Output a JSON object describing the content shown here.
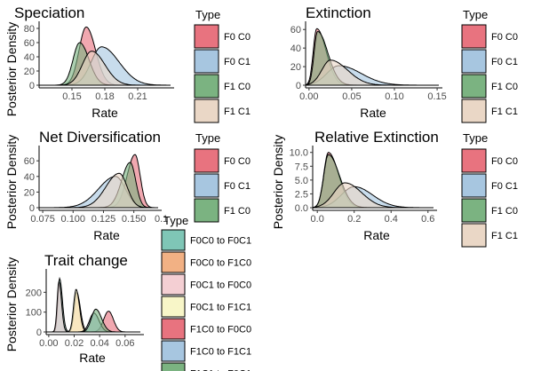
{
  "colors": {
    "F0 C0": "#e8737f",
    "F0 C1": "#a7c6e0",
    "F1 C0": "#7bb381",
    "F1 C1": "#ead7c6",
    "F0C0 to F0C1": "#7fc6b6",
    "F0C0 to F1C0": "#f2b184",
    "F0C1 to F0C0": "#f4cfd3",
    "F0C1 to F1C1": "#f8f6c8",
    "F1C0 to F0C0": "#e8737f",
    "F1C0 to F1C1": "#a7c6e0",
    "F1C1 to F0C1": "#7bb381"
  },
  "chart_data": [
    {
      "id": "speciation",
      "type": "area",
      "title": "Speciation",
      "xlabel": "Rate",
      "ylabel": "Posterior Density",
      "xlim": [
        0.12,
        0.24
      ],
      "ylim": [
        0,
        85
      ],
      "xticks": [
        0.15,
        0.18,
        0.21
      ],
      "xtick_labels": [
        "0.15",
        "0.18",
        "0.21"
      ],
      "yticks": [
        0,
        20,
        40,
        60,
        80
      ],
      "ytick_labels": [
        "0",
        "20",
        "40",
        "60",
        "80"
      ],
      "legend_title": "Type",
      "series": [
        {
          "name": "F0 C0",
          "peak_x": 0.163,
          "peak_y": 82,
          "sd_left": 0.0065,
          "sd_right": 0.0085
        },
        {
          "name": "F0 C1",
          "peak_x": 0.177,
          "peak_y": 54,
          "sd_left": 0.0095,
          "sd_right": 0.016
        },
        {
          "name": "F1 C0",
          "peak_x": 0.157,
          "peak_y": 60,
          "sd_left": 0.006,
          "sd_right": 0.0085
        },
        {
          "name": "F1 C1",
          "peak_x": 0.168,
          "peak_y": 48,
          "sd_left": 0.0085,
          "sd_right": 0.012
        }
      ]
    },
    {
      "id": "extinction",
      "type": "area",
      "title": "Extinction",
      "xlabel": "Rate",
      "ylabel": "",
      "xlim": [
        -0.004,
        0.152
      ],
      "ylim": [
        0,
        65
      ],
      "xticks": [
        0,
        0.05,
        0.1,
        0.15
      ],
      "xtick_labels": [
        "0.00",
        "0.05",
        "0.10",
        "0.15"
      ],
      "yticks": [
        0,
        20,
        40,
        60
      ],
      "ytick_labels": [
        "0",
        "20",
        "40",
        "60"
      ],
      "legend_title": "Type",
      "series": [
        {
          "name": "F0 C0",
          "peak_x": 0.009,
          "peak_y": 61,
          "sd_left": 0.004,
          "sd_right": 0.011
        },
        {
          "name": "F0 C1",
          "peak_x": 0.035,
          "peak_y": 21,
          "sd_left": 0.014,
          "sd_right": 0.026
        },
        {
          "name": "F1 C0",
          "peak_x": 0.01,
          "peak_y": 58,
          "sd_left": 0.004,
          "sd_right": 0.012
        },
        {
          "name": "F1 C1",
          "peak_x": 0.025,
          "peak_y": 27,
          "sd_left": 0.01,
          "sd_right": 0.02
        }
      ]
    },
    {
      "id": "net-diversification",
      "type": "area",
      "title": "Net Diversification",
      "xlabel": "Rate",
      "ylabel": "Posterior Density",
      "xlim": [
        0.072,
        0.17
      ],
      "ylim": [
        0,
        75
      ],
      "xticks": [
        0.075,
        0.1,
        0.125,
        0.15
      ],
      "xtick_labels": [
        "0.075",
        "0.100",
        "0.125",
        "0.150"
      ],
      "xtick_extra": "0.1",
      "yticks": [
        0,
        20,
        40,
        60
      ],
      "ytick_labels": [
        "0",
        "20",
        "40",
        "60"
      ],
      "legend_title": "Type",
      "series": [
        {
          "name": "F0 C0",
          "peak_x": 0.151,
          "peak_y": 68,
          "sd_left": 0.0065,
          "sd_right": 0.0042
        },
        {
          "name": "F0 C1",
          "peak_x": 0.135,
          "peak_y": 40,
          "sd_left": 0.014,
          "sd_right": 0.008
        },
        {
          "name": "F1 C0",
          "peak_x": 0.147,
          "peak_y": 58,
          "sd_left": 0.007,
          "sd_right": 0.0045
        },
        {
          "name": "F1 C1",
          "peak_x": 0.138,
          "peak_y": 44,
          "sd_left": 0.011,
          "sd_right": 0.0065
        }
      ]
    },
    {
      "id": "relative-extinction",
      "type": "area",
      "title": "Relative Extinction",
      "xlabel": "Rate",
      "ylabel": "Posterior Density",
      "xlim": [
        -0.025,
        0.63
      ],
      "ylim": [
        0,
        10.6
      ],
      "xticks": [
        0,
        0.2,
        0.4,
        0.6
      ],
      "xtick_labels": [
        "0.0",
        "0.2",
        "0.4",
        "0.6"
      ],
      "yticks": [
        0,
        2.5,
        5,
        7.5,
        10
      ],
      "ytick_labels": [
        "0.0",
        "2.5",
        "5.0",
        "7.5",
        "10.0"
      ],
      "legend_title": "Type",
      "series": [
        {
          "name": "F0 C0",
          "peak_x": 0.06,
          "peak_y": 10.0,
          "sd_left": 0.025,
          "sd_right": 0.055
        },
        {
          "name": "F0 C1",
          "peak_x": 0.2,
          "peak_y": 3.8,
          "sd_left": 0.07,
          "sd_right": 0.1
        },
        {
          "name": "F1 C0",
          "peak_x": 0.06,
          "peak_y": 9.6,
          "sd_left": 0.025,
          "sd_right": 0.06
        },
        {
          "name": "F1 C1",
          "peak_x": 0.15,
          "peak_y": 4.5,
          "sd_left": 0.06,
          "sd_right": 0.09
        }
      ]
    },
    {
      "id": "trait-change",
      "type": "area",
      "title": "Trait change",
      "xlabel": "Rate",
      "ylabel": "Posterior Density",
      "xlim": [
        -0.002,
        0.072
      ],
      "ylim": [
        0,
        300
      ],
      "xticks": [
        0,
        0.02,
        0.04,
        0.06
      ],
      "xtick_labels": [
        "0.00",
        "0.02",
        "0.04",
        "0.06"
      ],
      "yticks": [
        0,
        100,
        200
      ],
      "ytick_labels": [
        "0",
        "100",
        "200"
      ],
      "legend_title": "Type",
      "series": [
        {
          "name": "F0C0 to F0C1",
          "peak_x": 0.0085,
          "peak_y": 270,
          "sd_left": 0.0014,
          "sd_right": 0.0022
        },
        {
          "name": "F0C0 to F1C0",
          "peak_x": 0.022,
          "peak_y": 200,
          "sd_left": 0.002,
          "sd_right": 0.0028
        },
        {
          "name": "F0C1 to F0C0",
          "peak_x": 0.008,
          "peak_y": 255,
          "sd_left": 0.0014,
          "sd_right": 0.002
        },
        {
          "name": "F0C1 to F1C1",
          "peak_x": 0.0215,
          "peak_y": 215,
          "sd_left": 0.002,
          "sd_right": 0.0026
        },
        {
          "name": "F1C0 to F0C0",
          "peak_x": 0.047,
          "peak_y": 105,
          "sd_left": 0.0038,
          "sd_right": 0.0038
        },
        {
          "name": "F1C0 to F1C1",
          "peak_x": 0.0355,
          "peak_y": 95,
          "sd_left": 0.0035,
          "sd_right": 0.004
        },
        {
          "name": "F1C1 to F0C1",
          "peak_x": 0.037,
          "peak_y": 115,
          "sd_left": 0.0035,
          "sd_right": 0.0045
        }
      ]
    }
  ]
}
